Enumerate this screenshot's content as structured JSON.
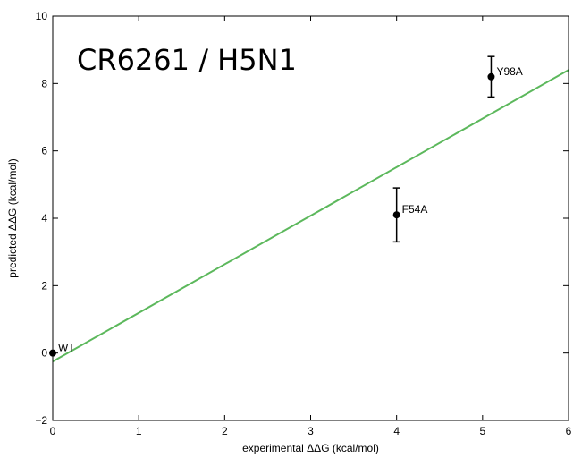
{
  "chart_data": {
    "type": "scatter",
    "annotation": "CR6261 / H5N1",
    "xlabel": "experimental ΔΔG (kcal/mol)",
    "ylabel": "predicted ΔΔG (kcal/mol)",
    "xlim": [
      0,
      6
    ],
    "ylim": [
      -2,
      10
    ],
    "xticks": [
      0,
      1,
      2,
      3,
      4,
      5,
      6
    ],
    "yticks": [
      -2,
      0,
      2,
      4,
      6,
      8,
      10
    ],
    "grid": false,
    "points": [
      {
        "label": "WT",
        "x": 0.0,
        "y": 0.0,
        "yerr": 0.0
      },
      {
        "label": "F54A",
        "x": 4.0,
        "y": 4.1,
        "yerr": 0.8
      },
      {
        "label": "Y98A",
        "x": 5.1,
        "y": 8.2,
        "yerr": 0.6
      }
    ],
    "fit_line": {
      "x": [
        0,
        6
      ],
      "y": [
        -0.25,
        8.4
      ],
      "color": "#5cb85c"
    },
    "point_color": "#000000"
  }
}
